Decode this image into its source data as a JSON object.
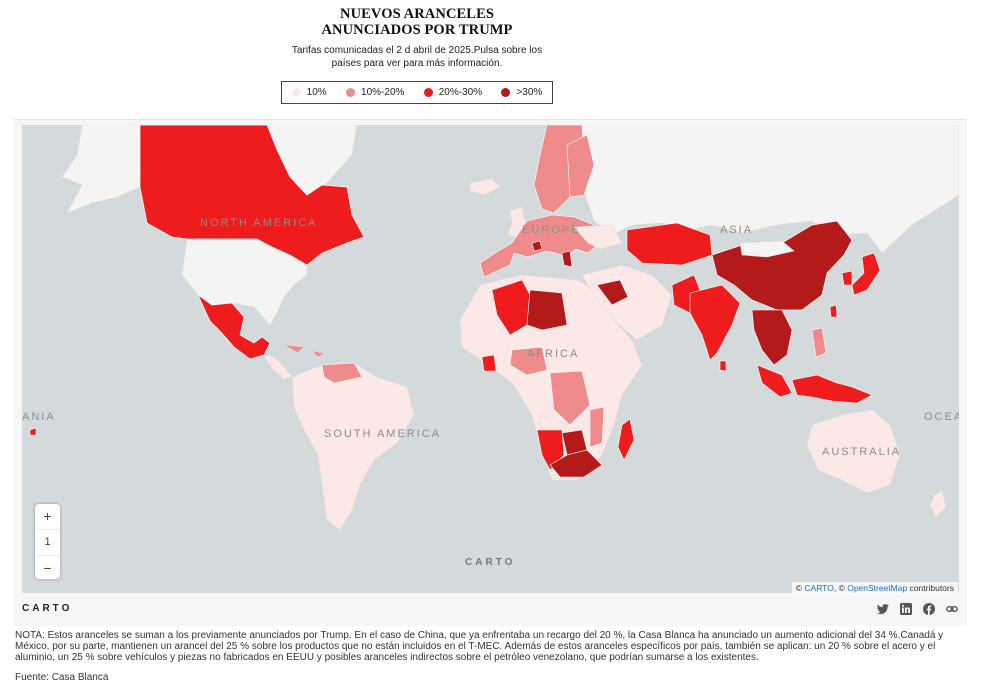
{
  "header": {
    "title_line1": "NUEVOS ARANCELES",
    "title_line2": "ANUNCIADOS POR TRUMP",
    "subtitle": "Tarifas comunicadas el 2 d abril de 2025.Pulsa sobre los países para ver para más información."
  },
  "legend": [
    {
      "label": "10%",
      "color": "#fde8e8"
    },
    {
      "label": "10%-20%",
      "color": "#f08b8b"
    },
    {
      "label": "20%-30%",
      "color": "#ee1c1c"
    },
    {
      "label": ">30%",
      "color": "#b51a1a"
    }
  ],
  "map": {
    "ocean_color": "#d4dadc",
    "land_color": "#f4f4f4",
    "labels": {
      "north_america": "NORTH AMERICA",
      "europe": "EUROPE",
      "asia": "ASIA",
      "africa": "AFRICA",
      "south_america": "SOUTH AMERICA",
      "australia": "AUSTRALIA",
      "oceania_left": "ANIA",
      "oceania_right": "OCEA"
    },
    "zoom": {
      "plus": "+",
      "level": "1",
      "minus": "−"
    },
    "watermark": "CARTO",
    "attribution": {
      "prefix": "© ",
      "carto": "CARTO",
      "sep": ", © ",
      "osm": "OpenStreetMap",
      "suffix": " contributors"
    }
  },
  "footer_logo": "CARTO",
  "share_icons": [
    "twitter-icon",
    "linkedin-icon",
    "facebook-icon",
    "link-icon"
  ],
  "note": "NOTA: Estos aranceles se suman a los previamente anunciados por Trump. En el caso de China, que ya enfrentaba un recargo del 20 %, la Casa Blanca ha anunciado un aumento adicional del 34 %.Canadá y México, por su parte, mantienen un arancel del 25 % sobre los productos que no están incluidos en el T-MEC. Además de estos aranceles específicos por país, también se aplican: un 20 % sobre el acero y el aluminio, un 25 % sobre vehículos y piezas no fabricados en EEUU y posibles aranceles indirectos sobre el petróleo venezolano, que podrían sumarse a los existentes.",
  "source": "Fuente: Casa Blanca"
}
